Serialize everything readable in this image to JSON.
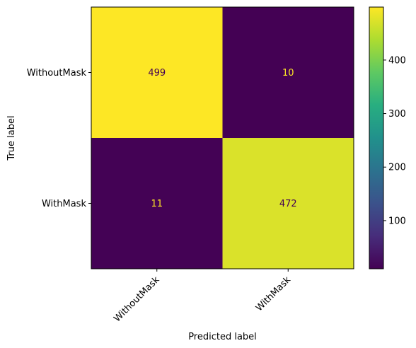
{
  "chart_data": {
    "type": "heatmap",
    "title": "",
    "xlabel": "Predicted label",
    "ylabel": "True label",
    "x_categories": [
      "WithoutMask",
      "WithMask"
    ],
    "y_categories": [
      "WithoutMask",
      "WithMask"
    ],
    "values": [
      [
        499,
        10
      ],
      [
        11,
        472
      ]
    ],
    "colormap": "viridis",
    "color_range": [
      10,
      499
    ],
    "colorbar_ticks": [
      100,
      200,
      300,
      400
    ],
    "text_color_on_dark": "#fde725",
    "text_color_on_light": "#440154"
  }
}
